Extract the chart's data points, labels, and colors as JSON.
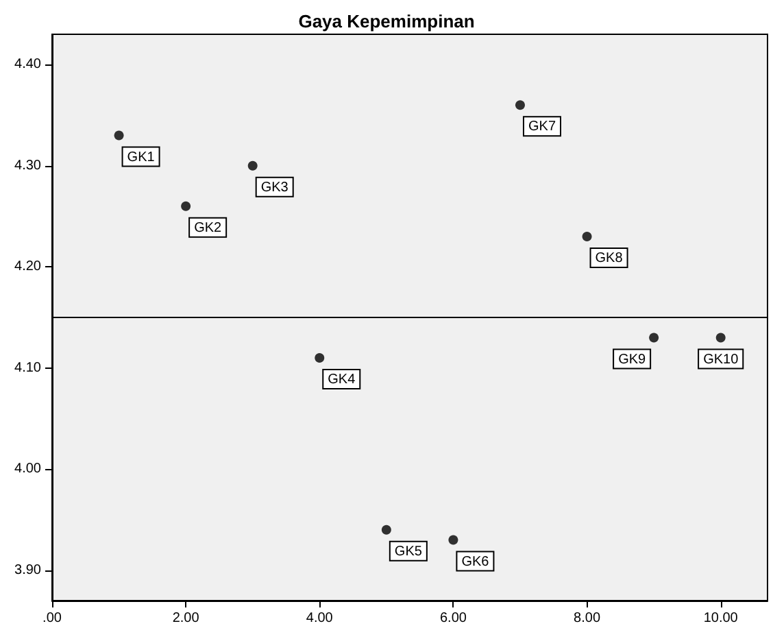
{
  "chart_data": {
    "type": "scatter",
    "title": "Gaya Kepemimpinan",
    "x": [
      1,
      2,
      3,
      4,
      5,
      6,
      7,
      8,
      9,
      10
    ],
    "values": [
      4.33,
      4.26,
      4.3,
      4.11,
      3.94,
      3.93,
      4.36,
      4.23,
      4.13,
      4.13
    ],
    "color": "#000000",
    "marker": "circle",
    "grid": false,
    "legend": false,
    "xlim": [
      0,
      10.7
    ],
    "ylim": [
      3.87,
      4.43
    ],
    "xticks": [
      {
        "value": 0,
        "label": ".00"
      },
      {
        "value": 2,
        "label": "2.00"
      },
      {
        "value": 4,
        "label": "4.00"
      },
      {
        "value": 6,
        "label": "6.00"
      },
      {
        "value": 8,
        "label": "8.00"
      },
      {
        "value": 10,
        "label": "10.00"
      }
    ],
    "yticks": [
      {
        "value": 3.9,
        "label": "3.90"
      },
      {
        "value": 4.0,
        "label": "4.00"
      },
      {
        "value": 4.1,
        "label": "4.10"
      },
      {
        "value": 4.2,
        "label": "4.20"
      },
      {
        "value": 4.3,
        "label": "4.30"
      },
      {
        "value": 4.4,
        "label": "4.40"
      }
    ],
    "ref_lines": [
      {
        "axis": "y",
        "value": 4.15,
        "color": "#000000"
      }
    ],
    "annotations": [
      {
        "text": "GK1",
        "x": 1,
        "y": 4.33
      },
      {
        "text": "GK2",
        "x": 2,
        "y": 4.26
      },
      {
        "text": "GK3",
        "x": 3,
        "y": 4.3
      },
      {
        "text": "GK4",
        "x": 4,
        "y": 4.11
      },
      {
        "text": "GK5",
        "x": 5,
        "y": 3.94
      },
      {
        "text": "GK6",
        "x": 6,
        "y": 3.93
      },
      {
        "text": "GK7",
        "x": 7,
        "y": 4.36
      },
      {
        "text": "GK8",
        "x": 8,
        "y": 4.23
      },
      {
        "text": "GK9",
        "x": 9,
        "y": 4.13
      },
      {
        "text": "GK10",
        "x": 10,
        "y": 4.13
      }
    ]
  }
}
